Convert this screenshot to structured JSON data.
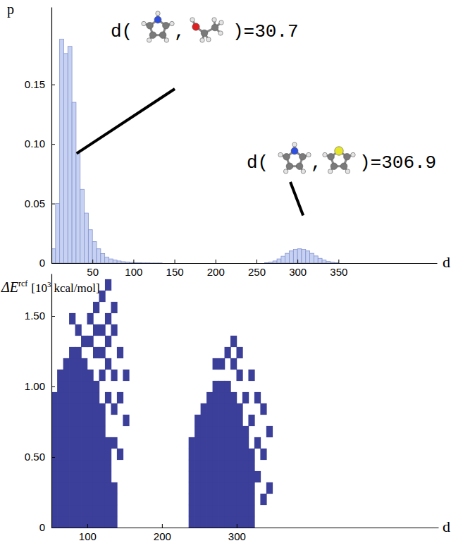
{
  "chart_data": [
    {
      "type": "histogram",
      "y_label": "p",
      "x_label": "d",
      "color": "#c7d1f2",
      "xlim": [
        0,
        470
      ],
      "xticks": [
        50,
        100,
        150,
        200,
        250,
        300,
        350
      ],
      "ylim": [
        0,
        0.215
      ],
      "yticks": [
        0,
        0.05,
        {
          "value": 0.1,
          "label": "0.10"
        },
        0.15
      ],
      "bins": [
        0,
        5,
        10,
        15,
        20,
        25,
        30,
        35,
        40,
        45,
        50,
        55,
        60,
        65,
        70,
        75,
        80,
        85,
        90,
        95,
        100,
        105,
        110,
        115,
        120,
        125,
        130,
        135,
        140,
        145,
        150,
        155,
        160,
        165,
        170,
        175,
        180,
        185,
        190,
        195,
        200,
        205,
        210,
        215,
        220,
        225,
        230,
        235,
        240,
        245,
        250,
        255,
        260,
        265,
        270,
        275,
        280,
        285,
        290,
        295,
        300,
        305,
        310,
        315,
        320,
        325,
        330,
        335,
        340,
        345,
        350
      ],
      "values": [
        0.012,
        0.05,
        0.188,
        0.176,
        0.182,
        0.135,
        0.092,
        0.062,
        0.042,
        0.028,
        0.018,
        0.012,
        0.008,
        0.005,
        0.0035,
        0.0025,
        0.0018,
        0.0012,
        0.0009,
        0.0006,
        0.0004,
        0.0003,
        0.0002,
        0.0002,
        0.0001,
        0.0001,
        0.0001,
        0,
        0,
        0,
        0,
        0,
        0,
        0,
        0,
        0,
        0,
        0,
        0,
        0,
        0,
        0,
        0,
        0,
        0,
        0,
        0,
        0,
        0,
        0,
        0,
        0,
        0.0003,
        0.0008,
        0.0018,
        0.0035,
        0.0058,
        0.0082,
        0.0102,
        0.0115,
        0.012,
        0.0115,
        0.0102,
        0.0082,
        0.006,
        0.004,
        0.0025,
        0.0014,
        0.0007,
        0.0003
      ],
      "annotations": [
        {
          "parts": [
            "d(",
            ",",
            ")=30.7"
          ],
          "x": 30.7,
          "y": 0.092
        },
        {
          "parts": [
            "d(",
            ",",
            ")=306.9"
          ],
          "x": 306.9,
          "y": 0.04
        }
      ]
    },
    {
      "type": "scatter",
      "y_label": {
        "main": "ΔE",
        "sup": "rcf",
        "unit_prefix": "[10",
        "unit_sup": "3",
        "unit_suffix": "kcal/mol]"
      },
      "x_label": "d",
      "color": "#3b3f99",
      "marker": "square",
      "xlim": [
        52,
        570
      ],
      "xticks": [
        100,
        200,
        300
      ],
      "ylim": [
        0,
        1.8
      ],
      "yticks": [
        0,
        {
          "value": 0.5,
          "label": "0.50"
        },
        {
          "value": 1,
          "label": "1.00"
        },
        {
          "value": 1.5,
          "label": "1.50"
        }
      ],
      "x": [
        56,
        56,
        56,
        56,
        56,
        56,
        56,
        56,
        56,
        56,
        56,
        56,
        64,
        64,
        64,
        64,
        64,
        64,
        64,
        64,
        64,
        64,
        64,
        64,
        64,
        64,
        72,
        72,
        72,
        72,
        72,
        72,
        72,
        72,
        72,
        72,
        72,
        72,
        72,
        72,
        72,
        80,
        80,
        80,
        80,
        80,
        80,
        80,
        80,
        80,
        80,
        80,
        80,
        80,
        80,
        80,
        80,
        88,
        88,
        88,
        88,
        88,
        88,
        88,
        88,
        88,
        88,
        88,
        88,
        88,
        88,
        88,
        88,
        96,
        96,
        96,
        96,
        96,
        96,
        96,
        96,
        96,
        96,
        96,
        96,
        96,
        96,
        96,
        104,
        104,
        104,
        104,
        104,
        104,
        104,
        104,
        104,
        104,
        104,
        104,
        104,
        104,
        112,
        112,
        112,
        112,
        112,
        112,
        112,
        112,
        112,
        112,
        112,
        112,
        112,
        120,
        120,
        120,
        120,
        120,
        120,
        120,
        120,
        120,
        120,
        120,
        128,
        128,
        128,
        128,
        128,
        128,
        128,
        128,
        136,
        136,
        136,
        136,
        104,
        104,
        112,
        112,
        112,
        120,
        120,
        120,
        120,
        128,
        128,
        128,
        128,
        128,
        136,
        136,
        136,
        136,
        136,
        144,
        144,
        144,
        152,
        152,
        96,
        88,
        80,
        240,
        240,
        240,
        240,
        240,
        240,
        240,
        240,
        248,
        248,
        248,
        248,
        248,
        248,
        248,
        248,
        248,
        248,
        256,
        256,
        256,
        256,
        256,
        256,
        256,
        256,
        256,
        256,
        256,
        264,
        264,
        264,
        264,
        264,
        264,
        264,
        264,
        264,
        264,
        264,
        264,
        272,
        272,
        272,
        272,
        272,
        272,
        272,
        272,
        272,
        272,
        272,
        272,
        272,
        280,
        280,
        280,
        280,
        280,
        280,
        280,
        280,
        280,
        280,
        280,
        280,
        280,
        288,
        288,
        288,
        288,
        288,
        288,
        288,
        288,
        288,
        288,
        288,
        288,
        288,
        296,
        296,
        296,
        296,
        296,
        296,
        296,
        296,
        296,
        296,
        296,
        296,
        304,
        304,
        304,
        304,
        304,
        304,
        304,
        304,
        304,
        304,
        304,
        312,
        312,
        312,
        312,
        312,
        312,
        312,
        312,
        312,
        320,
        320,
        320,
        320,
        320,
        320,
        320,
        328,
        328,
        336,
        336,
        344,
        320,
        312,
        304,
        296,
        288,
        328,
        336,
        344,
        280,
        272,
        320,
        304,
        296
      ],
      "values": [
        0.04,
        0.12,
        0.2,
        0.28,
        0.36,
        0.44,
        0.52,
        0.6,
        0.68,
        0.76,
        0.84,
        0.92,
        0.04,
        0.12,
        0.2,
        0.28,
        0.36,
        0.44,
        0.52,
        0.6,
        0.68,
        0.76,
        0.84,
        0.92,
        1,
        1.08,
        0.04,
        0.12,
        0.2,
        0.28,
        0.36,
        0.44,
        0.52,
        0.6,
        0.68,
        0.76,
        0.84,
        0.92,
        1,
        1.08,
        1.16,
        0.04,
        0.12,
        0.2,
        0.28,
        0.36,
        0.44,
        0.52,
        0.6,
        0.68,
        0.76,
        0.84,
        0.92,
        1,
        1.08,
        1.16,
        1.24,
        0.04,
        0.12,
        0.2,
        0.28,
        0.36,
        0.44,
        0.52,
        0.6,
        0.68,
        0.76,
        0.84,
        0.92,
        1,
        1.08,
        1.16,
        1.24,
        0.04,
        0.12,
        0.2,
        0.28,
        0.36,
        0.44,
        0.52,
        0.6,
        0.68,
        0.76,
        0.84,
        0.92,
        1,
        1.08,
        1.16,
        0.04,
        0.12,
        0.2,
        0.28,
        0.36,
        0.44,
        0.52,
        0.6,
        0.68,
        0.76,
        0.84,
        0.92,
        1,
        1.08,
        0.04,
        0.12,
        0.2,
        0.28,
        0.36,
        0.44,
        0.52,
        0.6,
        0.68,
        0.76,
        0.84,
        0.92,
        1,
        0.04,
        0.12,
        0.2,
        0.28,
        0.36,
        0.44,
        0.52,
        0.6,
        0.68,
        0.76,
        0.84,
        0.04,
        0.12,
        0.2,
        0.28,
        0.36,
        0.44,
        0.52,
        0.6,
        0.04,
        0.12,
        0.2,
        0.28,
        1.32,
        1.48,
        1.24,
        1.4,
        1.56,
        1.08,
        1.24,
        1.4,
        1.64,
        0.92,
        1.16,
        1.32,
        1.48,
        1.72,
        0.6,
        0.84,
        1.08,
        1.4,
        1.56,
        0.52,
        0.92,
        1.24,
        0.76,
        1.08,
        1.32,
        1.4,
        1.48,
        0.04,
        0.12,
        0.2,
        0.28,
        0.36,
        0.44,
        0.52,
        0.6,
        0.04,
        0.12,
        0.2,
        0.28,
        0.36,
        0.44,
        0.52,
        0.6,
        0.68,
        0.76,
        0.04,
        0.12,
        0.2,
        0.28,
        0.36,
        0.44,
        0.52,
        0.6,
        0.68,
        0.76,
        0.84,
        0.04,
        0.12,
        0.2,
        0.28,
        0.36,
        0.44,
        0.52,
        0.6,
        0.68,
        0.76,
        0.84,
        0.92,
        0.04,
        0.12,
        0.2,
        0.28,
        0.36,
        0.44,
        0.52,
        0.6,
        0.68,
        0.76,
        0.84,
        0.92,
        1,
        0.04,
        0.12,
        0.2,
        0.28,
        0.36,
        0.44,
        0.52,
        0.6,
        0.68,
        0.76,
        0.84,
        0.92,
        1,
        0.04,
        0.12,
        0.2,
        0.28,
        0.36,
        0.44,
        0.52,
        0.6,
        0.68,
        0.76,
        0.84,
        0.92,
        1,
        0.04,
        0.12,
        0.2,
        0.28,
        0.36,
        0.44,
        0.52,
        0.6,
        0.68,
        0.76,
        0.84,
        0.92,
        0.04,
        0.12,
        0.2,
        0.28,
        0.36,
        0.44,
        0.52,
        0.6,
        0.68,
        0.76,
        0.84,
        0.04,
        0.12,
        0.2,
        0.28,
        0.36,
        0.44,
        0.52,
        0.6,
        0.68,
        0.04,
        0.12,
        0.2,
        0.28,
        0.36,
        0.44,
        0.52,
        0.36,
        0.6,
        0.2,
        0.52,
        0.28,
        0.76,
        0.92,
        1.08,
        1.16,
        1.24,
        0.92,
        0.84,
        0.68,
        1.16,
        1.16,
        1.08,
        1.24,
        1.32
      ]
    }
  ]
}
